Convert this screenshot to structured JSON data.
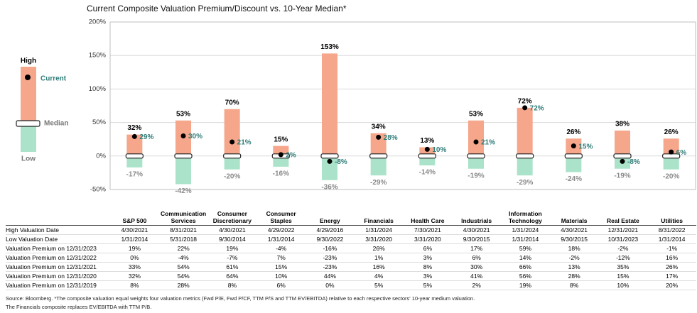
{
  "chart_data": {
    "type": "range",
    "title": "Current Composite Valuation Premium/Discount vs. 10-Year Median*",
    "categories": [
      "S&P 500",
      "Communication Services",
      "Consumer Discretionary",
      "Consumer Staples",
      "Energy",
      "Financials",
      "Health Care",
      "Industrials",
      "Information Technology",
      "Materials",
      "Real Estate",
      "Utilities"
    ],
    "series": [
      {
        "name": "High",
        "color": "#f5a68b",
        "values": [
          32,
          53,
          70,
          15,
          153,
          34,
          13,
          53,
          72,
          26,
          38,
          26
        ],
        "value_labels": [
          "32%",
          "53%",
          "70%",
          "15%",
          "153%",
          "34%",
          "13%",
          "53%",
          "72%",
          "26%",
          "38%",
          "26%"
        ],
        "label_color": "#000000"
      },
      {
        "name": "Current",
        "color": "#000000",
        "values": [
          29,
          30,
          21,
          2,
          -8,
          28,
          10,
          21,
          72,
          15,
          -8,
          6
        ],
        "value_labels": [
          "29%",
          "30%",
          "21%",
          "2%",
          "-8%",
          "28%",
          "10%",
          "21%",
          "72%",
          "15%",
          "-8%",
          "6%"
        ],
        "label_color": "#2f7c78"
      },
      {
        "name": "Low",
        "color": "#aae3ca",
        "values": [
          -17,
          -42,
          -20,
          -16,
          -36,
          -29,
          -14,
          -19,
          -29,
          -24,
          -19,
          -20
        ],
        "value_labels": [
          "-17%",
          "-42%",
          "-20%",
          "-16%",
          "-36%",
          "-29%",
          "-14%",
          "-19%",
          "-29%",
          "-24%",
          "-19%",
          "-20%"
        ],
        "label_color": "#8a8a8a"
      }
    ],
    "median": {
      "name": "Median",
      "value": 0
    },
    "ylim": [
      -50,
      200
    ],
    "yticks": [
      {
        "value": -50,
        "label": "-50%"
      },
      {
        "value": 0,
        "label": "0%"
      },
      {
        "value": 50,
        "label": "50%"
      },
      {
        "value": 100,
        "label": "100%"
      },
      {
        "value": 150,
        "label": "150%"
      },
      {
        "value": 200,
        "label": "200%"
      }
    ],
    "grid": true
  },
  "table": {
    "rows": [
      {
        "label": "High Valuation Date",
        "cells": [
          "4/30/2021",
          "8/31/2021",
          "4/30/2021",
          "4/29/2022",
          "4/29/2016",
          "1/31/2024",
          "7/30/2021",
          "4/30/2021",
          "1/31/2024",
          "4/30/2021",
          "12/31/2021",
          "8/31/2022"
        ]
      },
      {
        "label": "Low Valuation Date",
        "cells": [
          "1/31/2014",
          "5/31/2018",
          "9/30/2014",
          "1/31/2014",
          "9/30/2022",
          "3/31/2020",
          "3/31/2020",
          "9/30/2015",
          "1/31/2014",
          "9/30/2015",
          "10/31/2023",
          "1/31/2014"
        ]
      },
      {
        "label": "Valuation Premium on 12/31/2023",
        "cells": [
          "19%",
          "22%",
          "19%",
          "-4%",
          "-16%",
          "26%",
          "6%",
          "17%",
          "59%",
          "18%",
          "-2%",
          "-1%"
        ]
      },
      {
        "label": "Valuation Premium on 12/31/2022",
        "cells": [
          "0%",
          "-4%",
          "-7%",
          "7%",
          "-23%",
          "1%",
          "3%",
          "6%",
          "14%",
          "-2%",
          "-12%",
          "16%"
        ]
      },
      {
        "label": "Valuation Premium on 12/31/2021",
        "cells": [
          "33%",
          "54%",
          "61%",
          "15%",
          "-23%",
          "16%",
          "8%",
          "30%",
          "66%",
          "13%",
          "35%",
          "26%"
        ]
      },
      {
        "label": "Valuation Premium on 12/31/2020",
        "cells": [
          "32%",
          "54%",
          "64%",
          "10%",
          "44%",
          "4%",
          "3%",
          "41%",
          "56%",
          "28%",
          "15%",
          "17%"
        ]
      },
      {
        "label": "Valuation Premium on 12/31/2019",
        "cells": [
          "8%",
          "28%",
          "8%",
          "6%",
          "0%",
          "5%",
          "5%",
          "2%",
          "19%",
          "8%",
          "10%",
          "20%"
        ]
      }
    ]
  },
  "footnotes": [
    "Source: Bloomberg. *The composite valuation equal weights four valuation metrics (Fwd P/E, Fwd P/CF, TTM P/S and TTM EV/EBITDA) relative to each respective sectors' 10-year medium valuation.",
    "The Financials composite replaces EV/EBITDA with TTM P/B."
  ]
}
